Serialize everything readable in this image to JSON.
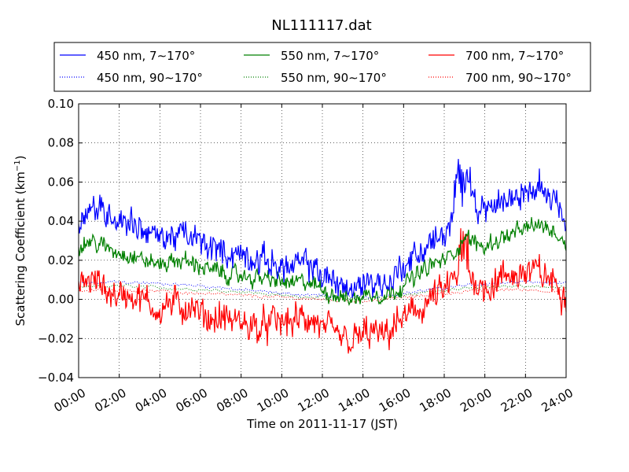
{
  "chart_data": {
    "type": "line",
    "title": "NL111117.dat",
    "xlabel": "Time on 2011-11-17 (JST)",
    "ylabel_main": "Scattering Coefficient (km",
    "ylabel_sup": "−1",
    "ylabel_close": ")",
    "xlim": [
      "00:00",
      "24:00"
    ],
    "ylim": [
      -0.04,
      0.1
    ],
    "x_ticks": [
      "00:00",
      "02:00",
      "04:00",
      "06:00",
      "08:00",
      "10:00",
      "12:00",
      "14:00",
      "16:00",
      "18:00",
      "20:00",
      "22:00",
      "24:00"
    ],
    "y_ticks": [
      "−0.04",
      "−0.02",
      "0.00",
      "0.02",
      "0.04",
      "0.06",
      "0.08",
      "0.10"
    ],
    "grid": true,
    "legend_position": "top, above plot, 3 columns",
    "series": [
      {
        "name": "450 nm, 7∼170°",
        "color": "#0000ff",
        "style": "solid",
        "x": [
          "00:00",
          "00:30",
          "01:00",
          "01:30",
          "02:00",
          "02:30",
          "03:00",
          "03:30",
          "04:00",
          "04:30",
          "05:00",
          "05:30",
          "06:00",
          "06:30",
          "07:00",
          "07:30",
          "08:00",
          "08:30",
          "09:00",
          "09:30",
          "10:00",
          "10:30",
          "11:00",
          "11:30",
          "12:00",
          "12:30",
          "13:00",
          "13:30",
          "14:00",
          "14:30",
          "15:00",
          "15:30",
          "16:00",
          "16:30",
          "17:00",
          "17:30",
          "18:00",
          "18:30",
          "19:00",
          "19:30",
          "20:00",
          "20:30",
          "21:00",
          "21:30",
          "22:00",
          "22:30",
          "23:00",
          "23:30",
          "24:00"
        ],
        "values": [
          0.04,
          0.047,
          0.046,
          0.044,
          0.041,
          0.04,
          0.037,
          0.034,
          0.031,
          0.032,
          0.033,
          0.032,
          0.029,
          0.027,
          0.025,
          0.023,
          0.023,
          0.021,
          0.02,
          0.019,
          0.017,
          0.016,
          0.018,
          0.017,
          0.012,
          0.01,
          0.008,
          0.003,
          0.009,
          0.01,
          0.007,
          0.011,
          0.018,
          0.021,
          0.026,
          0.03,
          0.033,
          0.04,
          0.055,
          0.05,
          0.045,
          0.049,
          0.051,
          0.052,
          0.055,
          0.057,
          0.056,
          0.052,
          0.04
        ]
      },
      {
        "name": "550 nm, 7∼170°",
        "color": "#008000",
        "style": "solid",
        "x": [
          "00:00",
          "00:30",
          "01:00",
          "01:30",
          "02:00",
          "02:30",
          "03:00",
          "03:30",
          "04:00",
          "04:30",
          "05:00",
          "05:30",
          "06:00",
          "06:30",
          "07:00",
          "07:30",
          "08:00",
          "08:30",
          "09:00",
          "09:30",
          "10:00",
          "10:30",
          "11:00",
          "11:30",
          "12:00",
          "12:30",
          "13:00",
          "13:30",
          "14:00",
          "14:30",
          "15:00",
          "15:30",
          "16:00",
          "16:30",
          "17:00",
          "17:30",
          "18:00",
          "18:30",
          "19:00",
          "19:30",
          "20:00",
          "20:30",
          "21:00",
          "21:30",
          "22:00",
          "22:30",
          "23:00",
          "23:30",
          "24:00"
        ],
        "values": [
          0.026,
          0.03,
          0.028,
          0.026,
          0.024,
          0.023,
          0.021,
          0.019,
          0.018,
          0.019,
          0.02,
          0.019,
          0.017,
          0.015,
          0.014,
          0.012,
          0.012,
          0.011,
          0.011,
          0.01,
          0.009,
          0.008,
          0.009,
          0.008,
          0.005,
          0.003,
          0.001,
          0.0,
          0.002,
          0.003,
          0.002,
          0.004,
          0.008,
          0.011,
          0.015,
          0.018,
          0.02,
          0.024,
          0.032,
          0.029,
          0.027,
          0.03,
          0.032,
          0.034,
          0.036,
          0.038,
          0.037,
          0.034,
          0.028
        ]
      },
      {
        "name": "700 nm, 7∼170°",
        "color": "#ff0000",
        "style": "solid",
        "x": [
          "00:00",
          "00:30",
          "01:00",
          "01:30",
          "02:00",
          "02:30",
          "03:00",
          "03:30",
          "04:00",
          "04:30",
          "05:00",
          "05:30",
          "06:00",
          "06:30",
          "07:00",
          "07:30",
          "08:00",
          "08:30",
          "09:00",
          "09:30",
          "10:00",
          "10:30",
          "11:00",
          "11:30",
          "12:00",
          "12:30",
          "13:00",
          "13:30",
          "14:00",
          "14:30",
          "15:00",
          "15:30",
          "16:00",
          "16:30",
          "17:00",
          "17:30",
          "18:00",
          "18:30",
          "19:00",
          "19:30",
          "20:00",
          "20:30",
          "21:00",
          "21:30",
          "22:00",
          "22:30",
          "23:00",
          "23:30",
          "24:00"
        ],
        "values": [
          0.005,
          0.01,
          0.008,
          0.004,
          0.002,
          0.003,
          0.001,
          -0.003,
          -0.005,
          -0.002,
          -0.004,
          -0.003,
          -0.008,
          -0.01,
          -0.009,
          -0.011,
          -0.012,
          -0.013,
          -0.015,
          -0.012,
          -0.011,
          -0.012,
          -0.01,
          -0.011,
          -0.015,
          -0.018,
          -0.02,
          -0.022,
          -0.018,
          -0.017,
          -0.02,
          -0.014,
          -0.01,
          -0.007,
          -0.003,
          0.001,
          0.004,
          0.01,
          0.015,
          0.01,
          0.006,
          0.009,
          0.011,
          0.013,
          0.014,
          0.014,
          0.012,
          0.008,
          0.002
        ]
      },
      {
        "name": "450 nm, 90∼170°",
        "color": "#0000ff",
        "style": "dotted",
        "x": [
          "00:00",
          "02:00",
          "04:00",
          "06:00",
          "08:00",
          "10:00",
          "12:00",
          "14:00",
          "16:00",
          "18:00",
          "20:00",
          "22:00",
          "24:00"
        ],
        "values": [
          0.008,
          0.009,
          0.008,
          0.007,
          0.005,
          0.003,
          0.002,
          0.001,
          0.003,
          0.006,
          0.008,
          0.009,
          0.008
        ]
      },
      {
        "name": "550 nm, 90∼170°",
        "color": "#008000",
        "style": "dotted",
        "x": [
          "00:00",
          "02:00",
          "04:00",
          "06:00",
          "08:00",
          "10:00",
          "12:00",
          "14:00",
          "16:00",
          "18:00",
          "20:00",
          "22:00",
          "24:00"
        ],
        "values": [
          0.006,
          0.007,
          0.006,
          0.005,
          0.004,
          0.002,
          0.001,
          0.0,
          0.002,
          0.005,
          0.006,
          0.007,
          0.006
        ]
      },
      {
        "name": "700 nm, 90∼170°",
        "color": "#ff0000",
        "style": "dotted",
        "x": [
          "00:00",
          "02:00",
          "04:00",
          "06:00",
          "08:00",
          "10:00",
          "12:00",
          "14:00",
          "16:00",
          "18:00",
          "20:00",
          "22:00",
          "24:00"
        ],
        "values": [
          0.004,
          0.005,
          0.004,
          0.003,
          0.002,
          0.001,
          0.0,
          -0.001,
          0.001,
          0.003,
          0.005,
          0.005,
          0.004
        ]
      }
    ]
  }
}
